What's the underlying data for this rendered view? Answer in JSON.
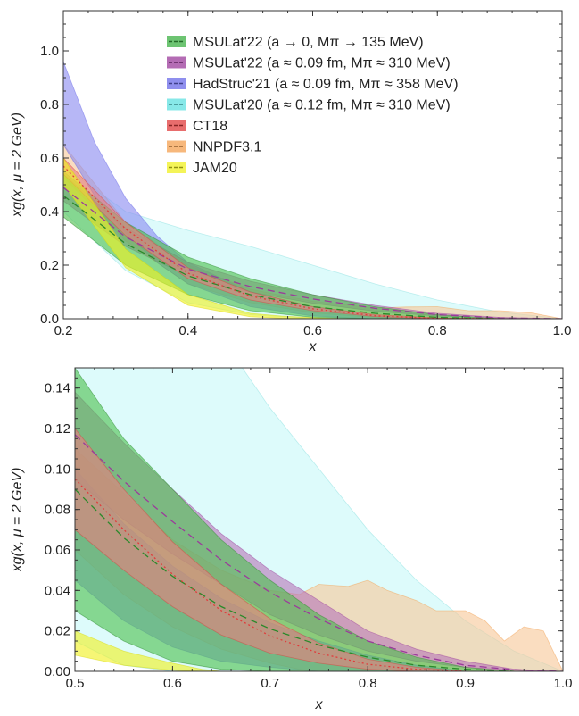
{
  "chart_data": [
    {
      "type": "area",
      "xlabel": "x",
      "ylabel": "xg(x, μ = 2 GeV)",
      "xlim": [
        0.2,
        1.0
      ],
      "ylim": [
        0.0,
        1.15
      ],
      "xticks": [
        "0.2",
        "0.4",
        "0.6",
        "0.8",
        "1.0"
      ],
      "xtick_values": [
        0.2,
        0.4,
        0.6,
        0.8,
        1.0
      ],
      "yticks": [
        "0.0",
        "0.2",
        "0.4",
        "0.6",
        "0.8",
        "1.0"
      ],
      "ytick_values": [
        0.0,
        0.2,
        0.4,
        0.6,
        0.8,
        1.0
      ],
      "grid": false,
      "legend_position": "top-right",
      "legend": [
        {
          "label": "MSULat'22 (a → 0, Mπ → 135 MeV)",
          "color": "#3cb043"
        },
        {
          "label": "MSULat'22 (a ≈ 0.09 fm, Mπ ≈ 310 MeV)",
          "color": "#9b3b9b"
        },
        {
          "label": "HadStruc'21 (a ≈ 0.09 fm, Mπ ≈ 358 MeV)",
          "color": "#6a6ae8"
        },
        {
          "label": "MSULat'20 (a ≈ 0.12 fm, Mπ ≈ 310 MeV)",
          "color": "#5fe0e0"
        },
        {
          "label": "CT18",
          "color": "#e03c3c"
        },
        {
          "label": "NNPDF3.1",
          "color": "#f4a050"
        },
        {
          "label": "JAM20",
          "color": "#f0f020"
        }
      ],
      "series": [
        {
          "name": "MSULat'20 (a ≈ 0.12 fm, Mπ ≈ 310 MeV)",
          "color": "#c8f8f8",
          "line": "#88e0e0",
          "x": [
            0.2,
            0.3,
            0.4,
            0.5,
            0.6,
            0.7,
            0.8,
            0.9,
            1.0
          ],
          "lower": [
            0.4,
            0.18,
            0.06,
            0.015,
            0.0,
            0.0,
            0.0,
            0.0,
            0.0
          ],
          "upper": [
            0.57,
            0.4,
            0.33,
            0.27,
            0.2,
            0.13,
            0.07,
            0.025,
            0.0
          ]
        },
        {
          "name": "NNPDF3.1",
          "color": "#f7c89a",
          "line": "#f4a050",
          "x": [
            0.2,
            0.3,
            0.4,
            0.5,
            0.6,
            0.7,
            0.75,
            0.8,
            0.85,
            0.9,
            0.95,
            1.0
          ],
          "lower": [
            0.53,
            0.29,
            0.13,
            0.06,
            0.022,
            0.004,
            0.0,
            0.0,
            0.0,
            0.0,
            0.0,
            0.0
          ],
          "upper": [
            0.65,
            0.36,
            0.2,
            0.11,
            0.065,
            0.04,
            0.044,
            0.045,
            0.03,
            0.03,
            0.022,
            0.0
          ]
        },
        {
          "name": "HadStruc'21 (a ≈ 0.09 fm, Mπ ≈ 358 MeV)",
          "color": "#8a8af0",
          "line": "#6a6ae8",
          "x": [
            0.2,
            0.25,
            0.3,
            0.35,
            0.4,
            0.5,
            0.6,
            0.7,
            0.8
          ],
          "lower": [
            0.65,
            0.46,
            0.32,
            0.21,
            0.13,
            0.045,
            0.01,
            0.0,
            0.0
          ],
          "upper": [
            0.96,
            0.66,
            0.45,
            0.31,
            0.21,
            0.1,
            0.045,
            0.012,
            0.0
          ]
        },
        {
          "name": "MSULat'22 (a ≈ 0.09 fm, Mπ ≈ 310 MeV)",
          "color": "#b878b8",
          "line": "#9b3b9b",
          "dash": "8,5",
          "x": [
            0.2,
            0.3,
            0.4,
            0.5,
            0.6,
            0.7,
            0.8,
            0.9,
            1.0
          ],
          "lower": [
            0.44,
            0.27,
            0.16,
            0.1,
            0.058,
            0.028,
            0.01,
            0.002,
            0.0
          ],
          "upper": [
            0.54,
            0.34,
            0.21,
            0.14,
            0.09,
            0.05,
            0.02,
            0.005,
            0.0
          ],
          "central": [
            0.49,
            0.305,
            0.185,
            0.12,
            0.074,
            0.039,
            0.015,
            0.003,
            0.0
          ]
        },
        {
          "name": "MSULat'22 (a → 0, Mπ → 135 MeV)",
          "color": "#4fc04f",
          "line": "#2a8a2a",
          "dash": "8,5",
          "x": [
            0.2,
            0.3,
            0.4,
            0.5,
            0.6,
            0.7,
            0.8,
            0.9
          ],
          "lower": [
            0.38,
            0.2,
            0.09,
            0.03,
            0.005,
            0.0,
            0.0,
            0.0
          ],
          "upper": [
            0.55,
            0.36,
            0.23,
            0.15,
            0.09,
            0.045,
            0.015,
            0.0
          ],
          "central": [
            0.46,
            0.28,
            0.16,
            0.09,
            0.045,
            0.02,
            0.005,
            0.0
          ]
        },
        {
          "name": "CT18",
          "color": "#e88080",
          "line": "#e03c3c",
          "dash": "2,3",
          "x": [
            0.2,
            0.3,
            0.4,
            0.5,
            0.6,
            0.7,
            0.8,
            0.9
          ],
          "lower": [
            0.54,
            0.31,
            0.15,
            0.07,
            0.03,
            0.008,
            0.0,
            0.0
          ],
          "upper": [
            0.6,
            0.36,
            0.19,
            0.1,
            0.045,
            0.015,
            0.003,
            0.0
          ],
          "central": [
            0.57,
            0.335,
            0.17,
            0.085,
            0.037,
            0.011,
            0.0015,
            0.0
          ]
        },
        {
          "name": "JAM20",
          "color": "#f0f020",
          "line": "#d8d800",
          "dash": "4,3",
          "x": [
            0.2,
            0.3,
            0.4,
            0.5,
            0.55,
            0.6,
            0.65
          ],
          "lower": [
            0.5,
            0.19,
            0.05,
            0.007,
            0.002,
            0.0,
            0.0
          ],
          "upper": [
            0.6,
            0.26,
            0.09,
            0.02,
            0.01,
            0.004,
            0.0
          ]
        }
      ]
    },
    {
      "type": "area",
      "xlabel": "x",
      "ylabel": "xg(x, μ = 2 GeV)",
      "xlim": [
        0.5,
        1.0
      ],
      "ylim": [
        0.0,
        0.15
      ],
      "xticks": [
        "0.5",
        "0.6",
        "0.7",
        "0.8",
        "0.9",
        "1.0"
      ],
      "xtick_values": [
        0.5,
        0.6,
        0.7,
        0.8,
        0.9,
        1.0
      ],
      "yticks": [
        "0.00",
        "0.02",
        "0.04",
        "0.06",
        "0.08",
        "0.10",
        "0.12",
        "0.14"
      ],
      "ytick_values": [
        0.0,
        0.02,
        0.04,
        0.06,
        0.08,
        0.1,
        0.12,
        0.14
      ],
      "grid": false,
      "series": [
        {
          "name": "MSULat'20 (a ≈ 0.12 fm, Mπ ≈ 310 MeV)",
          "color": "#c8f8f8",
          "line": "#88e0e0",
          "x": [
            0.5,
            0.55,
            0.6,
            0.65,
            0.7,
            0.75,
            0.8,
            0.85,
            0.9,
            0.95,
            1.0
          ],
          "lower": [
            0.015,
            0.003,
            0.0,
            0.0,
            0.0,
            0.0,
            0.0,
            0.0,
            0.0,
            0.0,
            0.0
          ],
          "upper": [
            0.27,
            0.23,
            0.2,
            0.165,
            0.13,
            0.1,
            0.07,
            0.045,
            0.025,
            0.01,
            0.0
          ]
        },
        {
          "name": "NNPDF3.1",
          "color": "#f7c89a",
          "line": "#f4a050",
          "x": [
            0.5,
            0.55,
            0.6,
            0.65,
            0.7,
            0.73,
            0.75,
            0.78,
            0.8,
            0.82,
            0.85,
            0.87,
            0.9,
            0.92,
            0.94,
            0.96,
            0.98,
            1.0
          ],
          "lower": [
            0.06,
            0.038,
            0.022,
            0.011,
            0.004,
            0.001,
            0.0,
            0.0,
            0.0,
            0.0,
            0.0,
            0.0,
            0.0,
            0.0,
            0.0,
            0.0,
            0.0,
            0.0
          ],
          "upper": [
            0.11,
            0.088,
            0.065,
            0.05,
            0.04,
            0.038,
            0.043,
            0.042,
            0.045,
            0.04,
            0.035,
            0.03,
            0.03,
            0.025,
            0.015,
            0.022,
            0.02,
            0.0
          ]
        },
        {
          "name": "HadStruc'21 (a ≈ 0.09 fm, Mπ ≈ 358 MeV)",
          "color": "#8a8af0",
          "line": "#6a6ae8",
          "x": [
            0.5,
            0.55,
            0.6,
            0.65,
            0.7,
            0.75,
            0.8,
            0.85,
            0.9
          ],
          "lower": [
            0.045,
            0.025,
            0.012,
            0.005,
            0.002,
            0.0,
            0.0,
            0.0,
            0.0
          ],
          "upper": [
            0.1,
            0.073,
            0.052,
            0.036,
            0.024,
            0.015,
            0.008,
            0.003,
            0.0
          ]
        },
        {
          "name": "MSULat'22 (a ≈ 0.09 fm, Mπ ≈ 310 MeV)",
          "color": "#b878b8",
          "line": "#9b3b9b",
          "dash": "8,5",
          "x": [
            0.5,
            0.55,
            0.6,
            0.65,
            0.7,
            0.75,
            0.8,
            0.85,
            0.9,
            0.95,
            1.0
          ],
          "lower": [
            0.095,
            0.075,
            0.058,
            0.043,
            0.028,
            0.018,
            0.01,
            0.005,
            0.002,
            0.0005,
            0.0
          ],
          "upper": [
            0.138,
            0.113,
            0.09,
            0.068,
            0.05,
            0.035,
            0.02,
            0.011,
            0.005,
            0.001,
            0.0
          ],
          "central": [
            0.117,
            0.094,
            0.074,
            0.055,
            0.039,
            0.026,
            0.015,
            0.008,
            0.003,
            0.0008,
            0.0
          ]
        },
        {
          "name": "MSULat'22 (a → 0, Mπ → 135 MeV)",
          "color": "#4fc04f",
          "line": "#2a8a2a",
          "dash": "8,5",
          "x": [
            0.5,
            0.55,
            0.6,
            0.65,
            0.7,
            0.75,
            0.8,
            0.85,
            0.9,
            0.95
          ],
          "lower": [
            0.03,
            0.015,
            0.005,
            0.001,
            0.0,
            0.0,
            0.0,
            0.0,
            0.0,
            0.0
          ],
          "upper": [
            0.15,
            0.115,
            0.09,
            0.065,
            0.045,
            0.028,
            0.015,
            0.007,
            0.002,
            0.0
          ],
          "central": [
            0.09,
            0.066,
            0.047,
            0.032,
            0.021,
            0.013,
            0.007,
            0.003,
            0.001,
            0.0
          ]
        },
        {
          "name": "CT18",
          "color": "#e88080",
          "line": "#e03c3c",
          "dash": "2,3",
          "x": [
            0.5,
            0.55,
            0.6,
            0.65,
            0.7,
            0.75,
            0.8,
            0.85,
            0.9
          ],
          "lower": [
            0.07,
            0.05,
            0.032,
            0.018,
            0.009,
            0.004,
            0.001,
            0.0,
            0.0
          ],
          "upper": [
            0.12,
            0.09,
            0.064,
            0.043,
            0.026,
            0.014,
            0.006,
            0.002,
            0.0
          ],
          "central": [
            0.095,
            0.07,
            0.048,
            0.03,
            0.0175,
            0.009,
            0.0035,
            0.001,
            0.0
          ]
        },
        {
          "name": "JAM20",
          "color": "#f0f020",
          "line": "#d8d800",
          "dash": "4,3",
          "x": [
            0.5,
            0.55,
            0.6,
            0.63,
            0.65
          ],
          "lower": [
            0.008,
            0.003,
            0.0005,
            0.0,
            0.0
          ],
          "upper": [
            0.02,
            0.01,
            0.004,
            0.001,
            0.0
          ]
        }
      ]
    }
  ]
}
